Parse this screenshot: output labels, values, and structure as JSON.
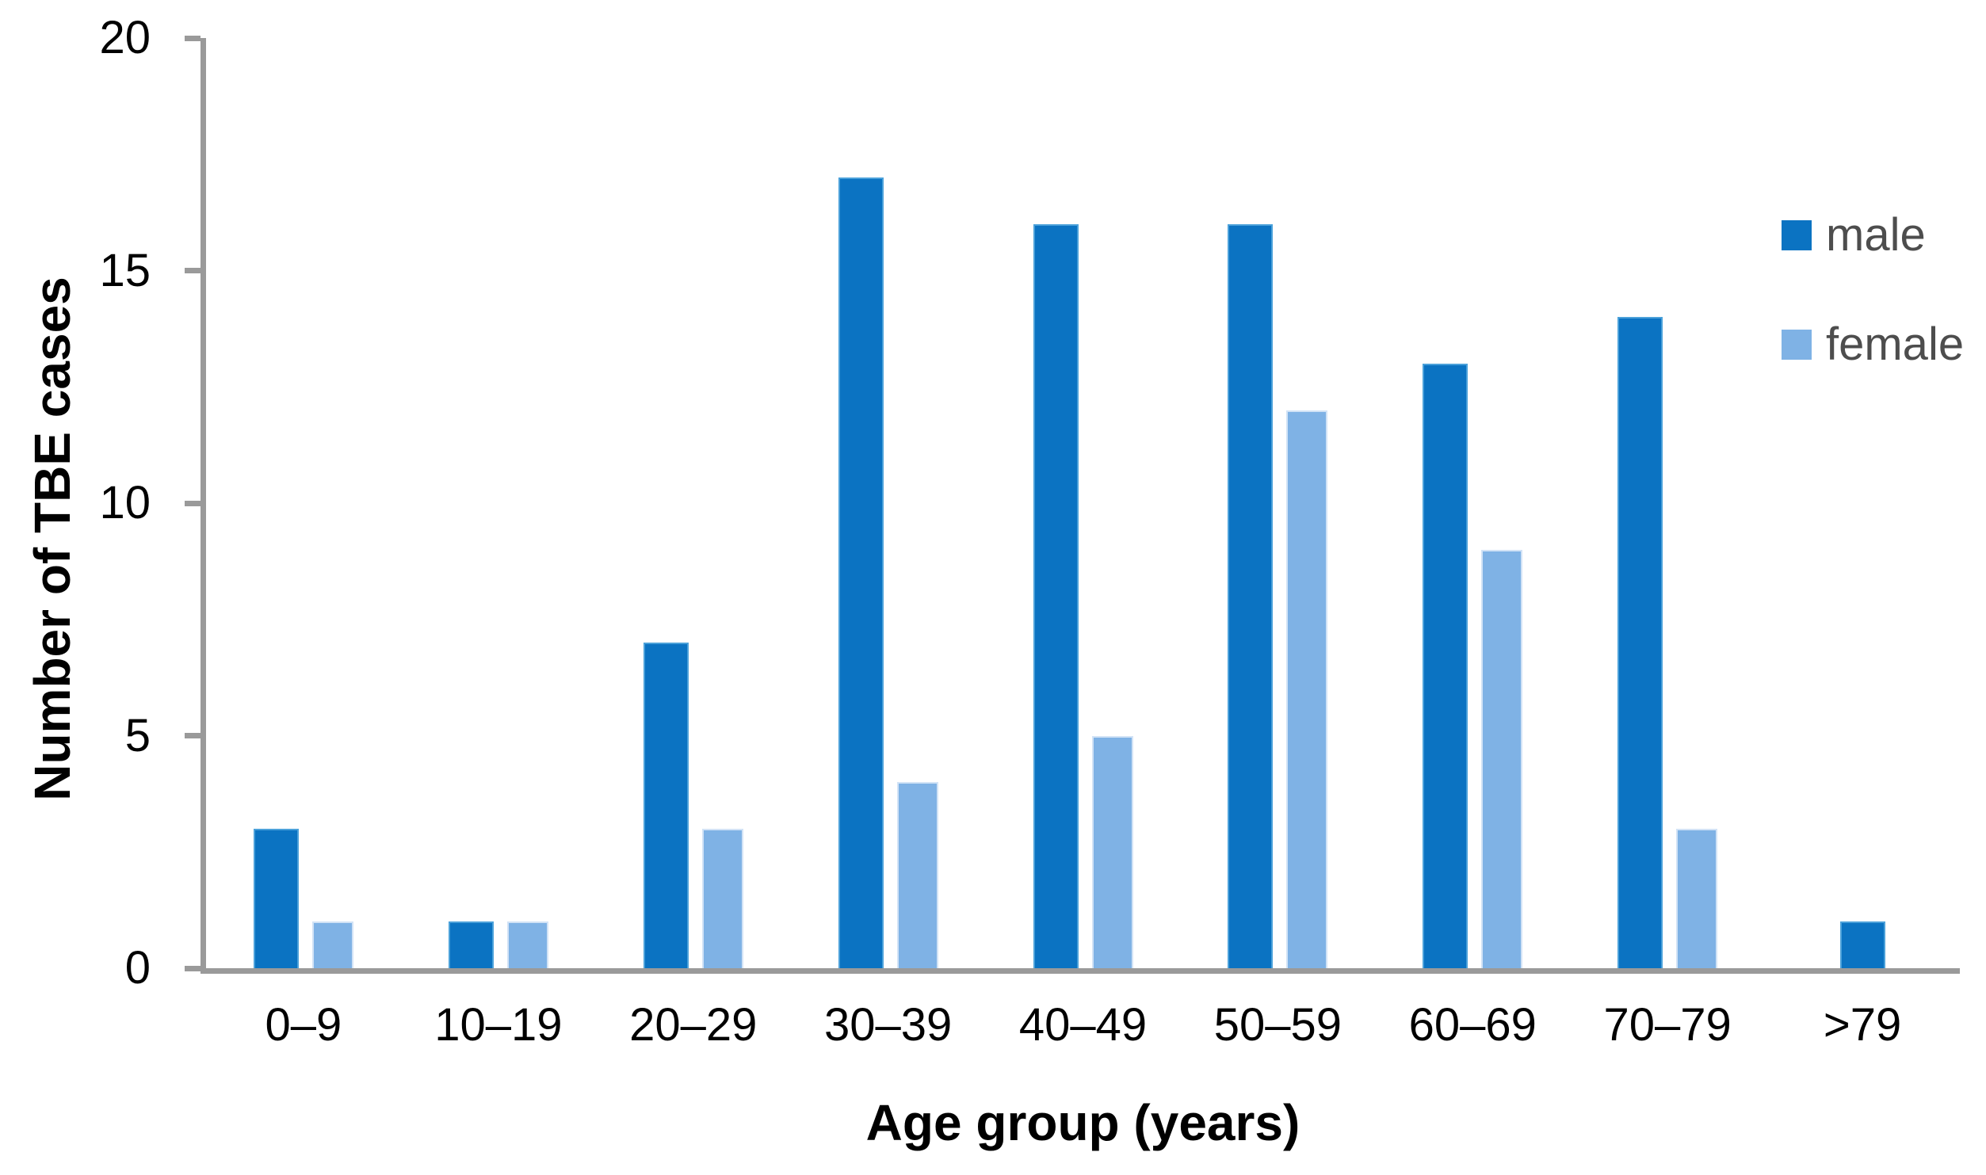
{
  "chart_data": {
    "type": "bar",
    "title": "",
    "xlabel": "Age group (years)",
    "ylabel": "Number of TBE cases",
    "categories": [
      "0–9",
      "10–19",
      "20–29",
      "30–39",
      "40–49",
      "50–59",
      "60–69",
      "70–79",
      ">79"
    ],
    "series": [
      {
        "name": "male",
        "color": "#0b73c2",
        "values": [
          3,
          1,
          7,
          17,
          16,
          16,
          13,
          14,
          1
        ]
      },
      {
        "name": "female",
        "color": "#7fb2e5",
        "values": [
          1,
          1,
          3,
          4,
          5,
          12,
          9,
          3,
          0
        ]
      }
    ],
    "ylim": [
      0,
      20
    ],
    "yticks": [
      0,
      5,
      10,
      15,
      20
    ],
    "grid": false,
    "legend_position": "right",
    "colors": {
      "axis": "#9a9a9a",
      "tick_label": "#000000",
      "legend_text": "#4d4d4d",
      "background": "#ffffff"
    }
  }
}
